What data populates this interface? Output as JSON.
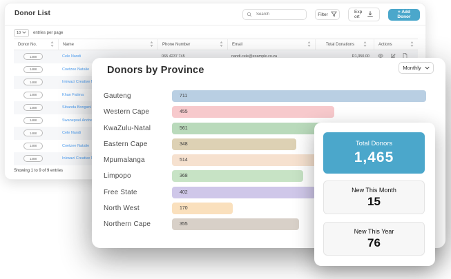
{
  "donor_list": {
    "title": "Donor List",
    "search": {
      "placeholder": "Search"
    },
    "filter_button": "Filter",
    "export_button": "Export",
    "add_donor_button": "+ Add Donor",
    "entries_per_page": {
      "value": "10",
      "label": "entries per page"
    },
    "columns": [
      "Donor No.",
      "Name",
      "Phone Number",
      "Email",
      "Total Donations",
      "Actions"
    ],
    "rows": [
      {
        "donor_no": "1488",
        "name": "Cele Nandi",
        "phone": "065 4237 745",
        "email": "nandi.cele@example.co.za",
        "total_donations": "R1,350.00",
        "actions": [
          "view",
          "edit",
          "document"
        ]
      },
      {
        "donor_no": "1488",
        "name": "Coetzee Natalie"
      },
      {
        "donor_no": "1488",
        "name": "Inkwazi Creative M"
      },
      {
        "donor_no": "1488",
        "name": "Khan Fatima"
      },
      {
        "donor_no": "1488",
        "name": "Sibanda Bongani"
      },
      {
        "donor_no": "1488",
        "name": "Swanepoel Andre"
      },
      {
        "donor_no": "1488",
        "name": "Cele Nandi"
      },
      {
        "donor_no": "1488",
        "name": "Coetzee Natalie"
      },
      {
        "donor_no": "1488",
        "name": "Inkwazi Creative M"
      }
    ],
    "footer": "Showing 1 to 9 of 9 entries"
  },
  "modal": {
    "title": "Donors by Province",
    "period_button": "Monthly"
  },
  "chart_data": {
    "type": "bar",
    "orientation": "horizontal",
    "title": "Donors by Province",
    "categories": [
      "Gauteng",
      "Western Cape",
      "KwaZulu-Natal",
      "Eastern Cape",
      "Mpumalanga",
      "Limpopo",
      "Free State",
      "North West",
      "Northern Cape"
    ],
    "values": [
      711,
      455,
      561,
      348,
      514,
      368,
      402,
      170,
      355
    ],
    "bar_colors": [
      "#b9cfe3",
      "#f7c9cc",
      "#b9dabb",
      "#ddd1b4",
      "#f6e1cf",
      "#c7e3c5",
      "#cfc7e9",
      "#fae0bd",
      "#d8d0c8"
    ],
    "value_labels_inside": true,
    "xlim": [
      0,
      711
    ],
    "grid": false,
    "legend": false
  },
  "stats_panel": {
    "total_donors": {
      "label": "Total Donors",
      "value": "1,465"
    },
    "new_this_month": {
      "label": "New This Month",
      "value": "15"
    },
    "new_this_year": {
      "label": "New This Year",
      "value": "76"
    }
  },
  "colors": {
    "accent_teal": "#4BA7CB",
    "link_blue": "#4D9DF0"
  }
}
